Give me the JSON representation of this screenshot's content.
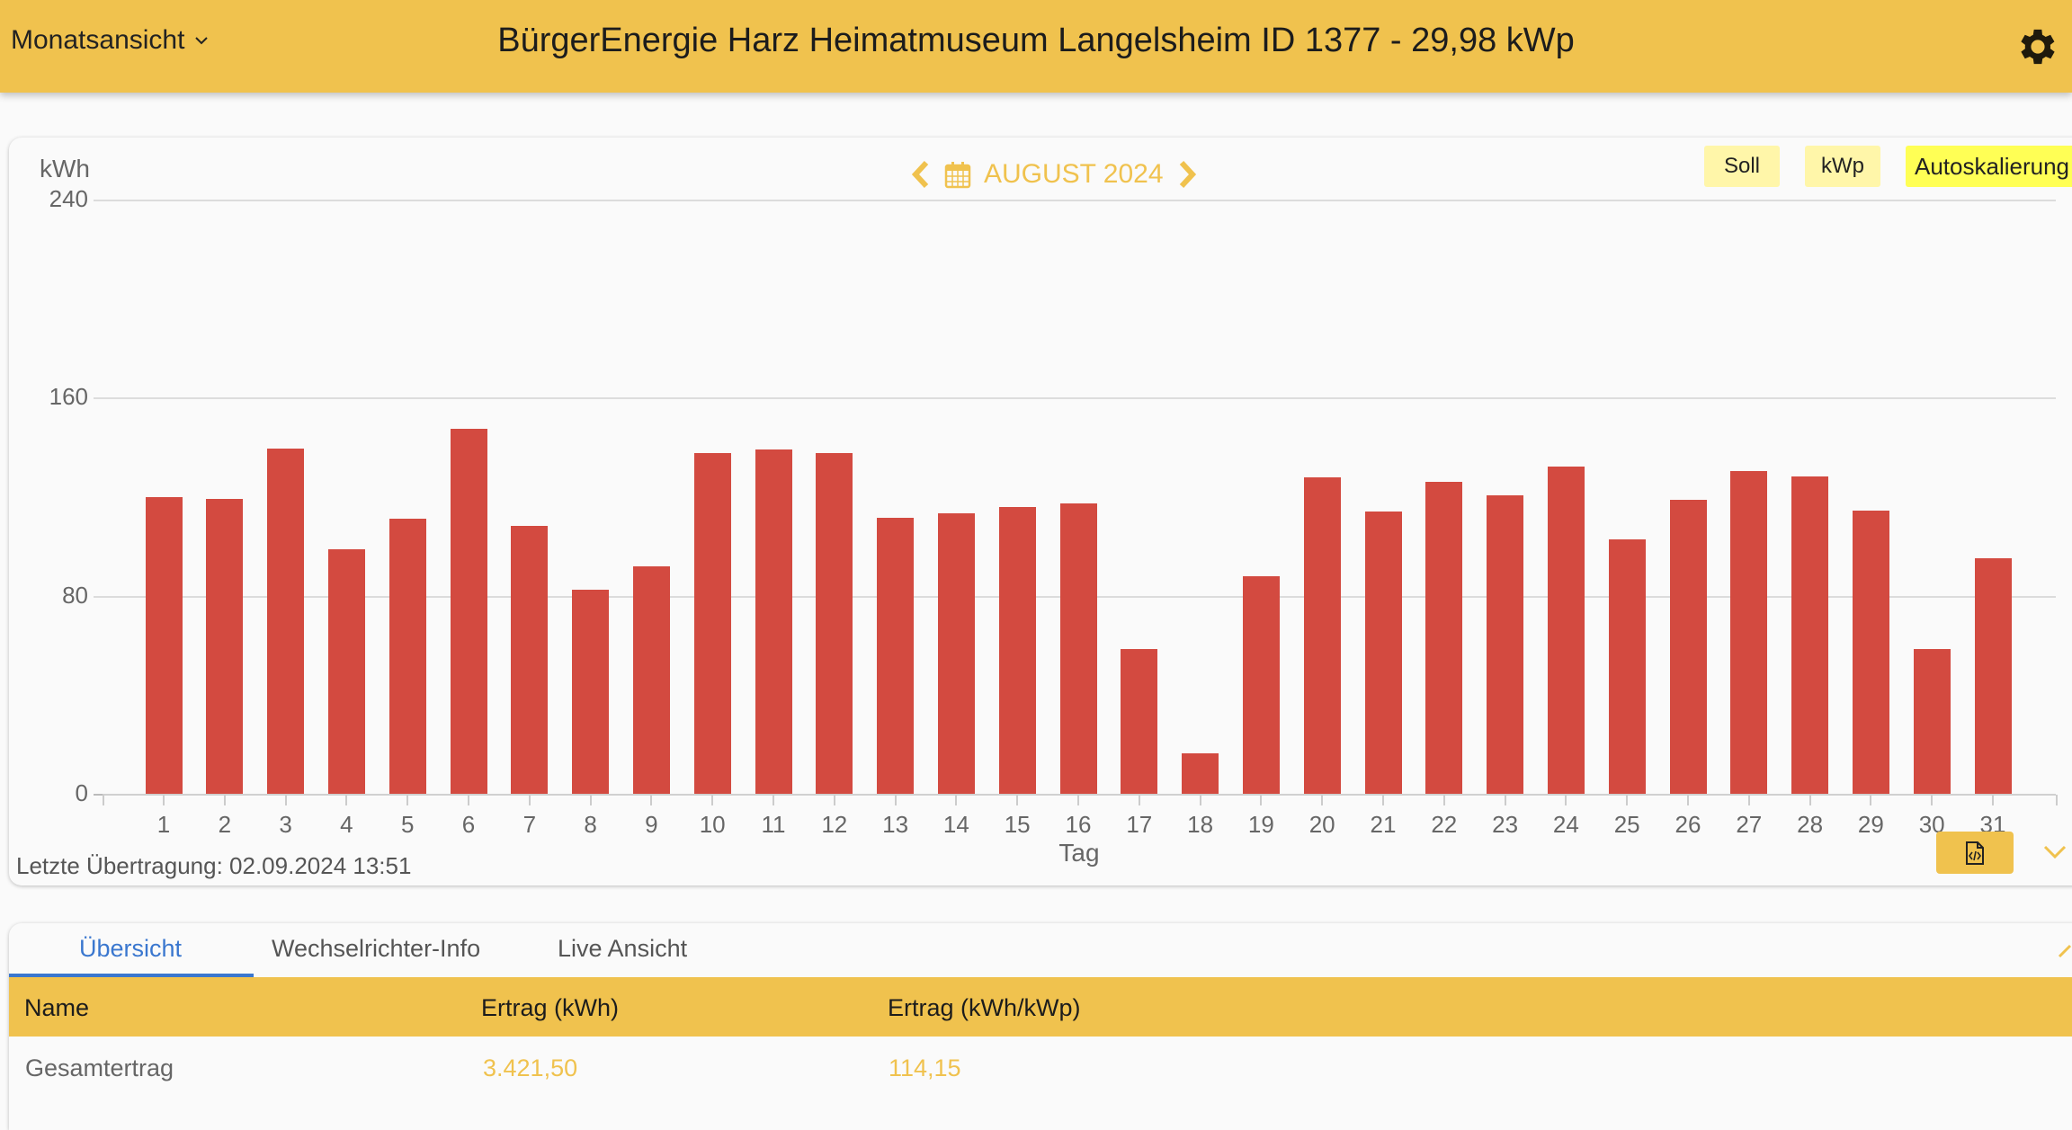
{
  "header": {
    "view_select": "Monatsansicht",
    "title": "BürgerEnergie Harz Heimatmuseum Langelsheim ID 1377 - 29,98 kWp",
    "settings_icon": "gear-icon"
  },
  "chart_nav": {
    "period_label": "AUGUST 2024",
    "prev_icon": "chevron-left-icon",
    "next_icon": "chevron-right-icon",
    "calendar_icon": "calendar-icon"
  },
  "toggles": {
    "soll": "Soll",
    "kwp": "kWp",
    "autoscale": "Autoskalierung"
  },
  "chart_footer": {
    "last_transmission": "Letzte Übertragung: 02.09.2024 13:51",
    "export_icon": "file-code-icon",
    "collapse_icon": "chevron-down-icon"
  },
  "colors": {
    "header_bg": "#F0C24E",
    "bar": "#D34A40",
    "accent": "#F0C24E",
    "tab_active": "#3A77CF",
    "toggle_bg": "#FFF6A9",
    "toggle_active_bg": "#FFFF55"
  },
  "chart_data": {
    "type": "bar",
    "title": "AUGUST 2024",
    "xlabel": "Tag",
    "ylabel": "kWh",
    "ylim": [
      0,
      240
    ],
    "yticks": [
      0,
      80,
      160,
      240
    ],
    "grid": true,
    "legend": null,
    "categories": [
      "1",
      "2",
      "3",
      "4",
      "5",
      "6",
      "7",
      "8",
      "9",
      "10",
      "11",
      "12",
      "13",
      "14",
      "15",
      "16",
      "17",
      "18",
      "19",
      "20",
      "21",
      "22",
      "23",
      "24",
      "25",
      "26",
      "27",
      "28",
      "29",
      "30",
      "31"
    ],
    "series": [
      {
        "name": "Ertrag (kWh)",
        "color": "#D34A40",
        "values": [
          119.8,
          119.2,
          139.3,
          98.7,
          111.2,
          147.3,
          108.2,
          82.5,
          91.7,
          137.6,
          139.0,
          137.6,
          111.5,
          113.4,
          115.8,
          117.2,
          58.3,
          16.2,
          87.8,
          127.7,
          114.1,
          126.1,
          120.7,
          132.1,
          102.7,
          118.9,
          130.3,
          128.0,
          114.4,
          58.3,
          95.2
        ]
      }
    ]
  },
  "tabs": [
    {
      "label": "Übersicht",
      "active": true
    },
    {
      "label": "Wechselrichter-Info",
      "active": false
    },
    {
      "label": "Live Ansicht",
      "active": false
    }
  ],
  "table": {
    "columns": [
      "Name",
      "Ertrag (kWh)",
      "Ertrag (kWh/kWp)"
    ],
    "rows": [
      [
        "Gesamtertrag",
        "3.421,50",
        "114,15"
      ]
    ]
  }
}
